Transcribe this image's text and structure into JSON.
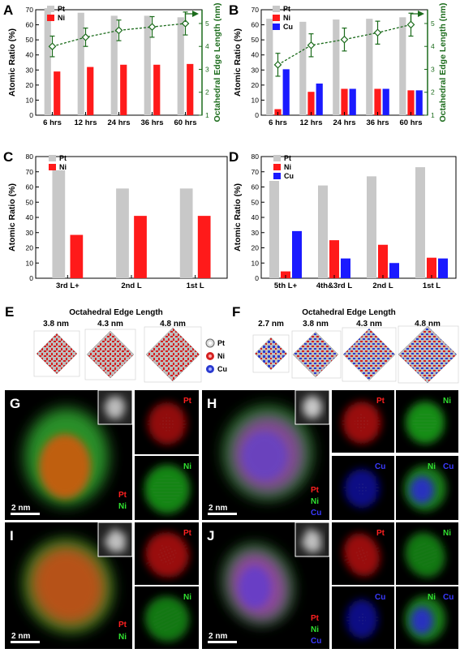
{
  "panels": {
    "A": "A",
    "B": "B",
    "C": "C",
    "D": "D",
    "E": "E",
    "F": "F",
    "G": "G",
    "H": "H",
    "I": "I",
    "J": "J"
  },
  "colors": {
    "pt": "#c8c8c8",
    "ni": "#ff1a1a",
    "cu": "#1a1aff",
    "edge": "#1b6b1b"
  },
  "chart_data": [
    {
      "panel": "A",
      "type": "bar",
      "categories": [
        "6 hrs",
        "12 hrs",
        "24 hrs",
        "36 hrs",
        "60 hrs"
      ],
      "series": [
        {
          "name": "Pt",
          "values": [
            71,
            68,
            66,
            66,
            65
          ]
        },
        {
          "name": "Ni",
          "values": [
            29,
            32,
            33.5,
            33.5,
            34
          ]
        }
      ],
      "ylabel": "Atomic Ratio (%)",
      "ylim": [
        0,
        70
      ],
      "yticks": [
        "0",
        "10",
        "20",
        "30",
        "40",
        "50",
        "60",
        "70"
      ],
      "y2label": "Octahedral Edge Length (nm)",
      "y2lim": [
        1,
        5.6
      ],
      "y2ticks": [
        "1",
        "2",
        "3",
        "4",
        "5"
      ],
      "edge_length": [
        4.0,
        4.4,
        4.7,
        4.85,
        5.0
      ],
      "edge_error": [
        0.45,
        0.4,
        0.45,
        0.45,
        0.5
      ]
    },
    {
      "panel": "B",
      "type": "bar",
      "categories": [
        "6 hrs",
        "12 hrs",
        "24 hrs",
        "36 hrs",
        "60 hrs"
      ],
      "series": [
        {
          "name": "Pt",
          "values": [
            64,
            62,
            63.5,
            64,
            65
          ]
        },
        {
          "name": "Ni",
          "values": [
            4,
            15.5,
            17.5,
            17.5,
            16.5
          ]
        },
        {
          "name": "Cu",
          "values": [
            30.5,
            21,
            17.5,
            17.5,
            16.5
          ]
        }
      ],
      "ylabel": "Atomic Ratio (%)",
      "ylim": [
        0,
        70
      ],
      "yticks": [
        "0",
        "10",
        "20",
        "30",
        "40",
        "50",
        "60",
        "70"
      ],
      "y2label": "Octahedral Edge Length (nm)",
      "y2lim": [
        1,
        5.6
      ],
      "y2ticks": [
        "1",
        "2",
        "3",
        "4",
        "5"
      ],
      "edge_length": [
        3.2,
        4.05,
        4.3,
        4.6,
        4.95
      ],
      "edge_error": [
        0.5,
        0.5,
        0.5,
        0.5,
        0.5
      ]
    },
    {
      "panel": "C",
      "type": "bar",
      "categories": [
        "3rd L+",
        "2nd L",
        "1st L"
      ],
      "series": [
        {
          "name": "Pt",
          "values": [
            71,
            59,
            59
          ]
        },
        {
          "name": "Ni",
          "values": [
            28.5,
            41,
            41
          ]
        }
      ],
      "ylabel": "Atomic Ratio (%)",
      "ylim": [
        0,
        80
      ],
      "yticks": [
        "0",
        "10",
        "20",
        "30",
        "40",
        "50",
        "60",
        "70",
        "80"
      ]
    },
    {
      "panel": "D",
      "type": "bar",
      "categories": [
        "5th L+",
        "4th&3rd L",
        "2nd L",
        "1st L"
      ],
      "series": [
        {
          "name": "Pt",
          "values": [
            64,
            61,
            67,
            73
          ]
        },
        {
          "name": "Ni",
          "values": [
            4.5,
            25,
            22,
            13.5
          ]
        },
        {
          "name": "Cu",
          "values": [
            31,
            13,
            10,
            13
          ]
        }
      ],
      "ylabel": "Atomic Ratio (%)",
      "ylim": [
        0,
        80
      ],
      "yticks": [
        "0",
        "10",
        "20",
        "30",
        "40",
        "50",
        "60",
        "70",
        "80"
      ]
    }
  ],
  "E": {
    "title": "Octahedral Edge Length",
    "sizes": [
      "3.8 nm",
      "4.3 nm",
      "4.8 nm"
    ],
    "legend": [
      "Pt",
      "Ni",
      "Cu"
    ]
  },
  "F": {
    "title": "Octahedral Edge Length",
    "sizes": [
      "2.7 nm",
      "3.8 nm",
      "4.3 nm",
      "4.8 nm"
    ]
  },
  "maps": {
    "pt": "Pt",
    "ni": "Ni",
    "cu": "Cu",
    "scale": "2 nm"
  }
}
